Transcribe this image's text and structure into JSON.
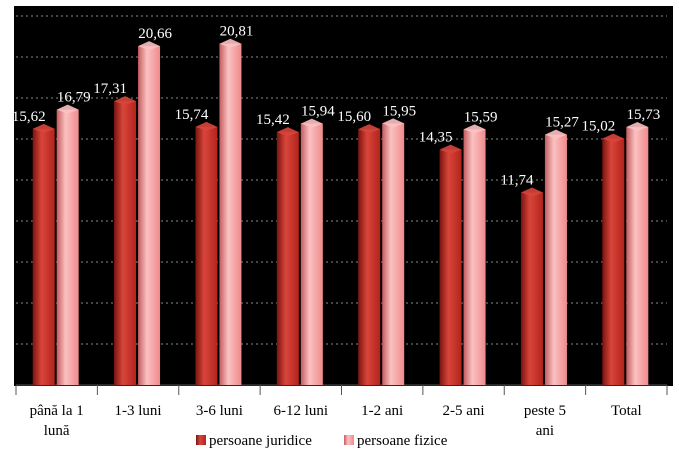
{
  "chart_data": {
    "type": "bar",
    "categories": [
      [
        "până la 1",
        "lună"
      ],
      [
        "1-3 luni"
      ],
      [
        "3-6 luni"
      ],
      [
        "6-12 luni"
      ],
      [
        "1-2 ani"
      ],
      [
        "2-5 ani"
      ],
      [
        "peste 5",
        "ani"
      ],
      [
        "Total"
      ]
    ],
    "series": [
      {
        "name": "persoane juridice",
        "values": [
          15.62,
          17.31,
          15.74,
          15.42,
          15.6,
          14.35,
          11.74,
          15.02
        ],
        "labels": [
          "15,62",
          "17,31",
          "15,74",
          "15,42",
          "15,60",
          "14,35",
          "11,74",
          "15,02"
        ],
        "color": "#b3241d",
        "color_light": "#d8453a",
        "color_dark": "#7a1410"
      },
      {
        "name": "persoane fizice",
        "values": [
          16.79,
          20.66,
          20.81,
          15.94,
          15.95,
          15.59,
          15.27,
          15.73
        ],
        "labels": [
          "16,79",
          "20,66",
          "20,81",
          "15,94",
          "15,95",
          "15,59",
          "15,27",
          "15,73"
        ],
        "color": "#f08a8c",
        "color_light": "#fbc1c2",
        "color_dark": "#c45c60"
      }
    ],
    "ylim": [
      0,
      22.5
    ],
    "grid": true,
    "legend_position": "bottom"
  }
}
